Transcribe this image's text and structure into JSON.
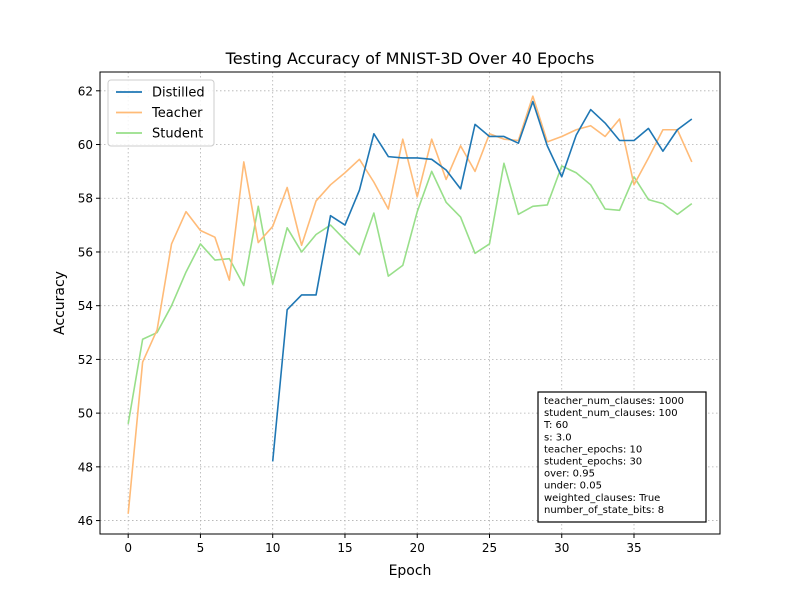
{
  "chart_data": {
    "type": "line",
    "title": "Testing Accuracy of MNIST-3D Over 40 Epochs",
    "xlabel": "Epoch",
    "ylabel": "Accuracy",
    "xlim": [
      -1.95,
      40.95
    ],
    "ylim": [
      45.5,
      62.7
    ],
    "xticks": [
      0,
      5,
      10,
      15,
      20,
      25,
      30,
      35
    ],
    "yticks": [
      46,
      48,
      50,
      52,
      54,
      56,
      58,
      60,
      62
    ],
    "grid": true,
    "legend_position": "top-left",
    "series": [
      {
        "name": "Distilled",
        "color": "#1f77b4",
        "x": [
          10,
          11,
          12,
          13,
          14,
          15,
          16,
          17,
          18,
          19,
          20,
          21,
          22,
          23,
          24,
          25,
          26,
          27,
          28,
          29,
          30,
          31,
          32,
          33,
          34,
          35,
          36,
          37,
          38,
          39
        ],
        "values": [
          48.2,
          53.85,
          54.4,
          54.4,
          57.35,
          57.0,
          58.3,
          60.4,
          59.55,
          59.5,
          59.5,
          59.45,
          59.05,
          58.35,
          60.75,
          60.3,
          60.3,
          60.05,
          61.6,
          59.95,
          58.8,
          60.35,
          61.3,
          60.8,
          60.15,
          60.15,
          60.6,
          59.75,
          60.55,
          60.95
        ]
      },
      {
        "name": "Teacher",
        "color": "#ffbb78",
        "x": [
          0,
          1,
          2,
          3,
          4,
          5,
          6,
          7,
          8,
          9,
          10,
          11,
          12,
          13,
          14,
          15,
          16,
          17,
          18,
          19,
          20,
          21,
          22,
          23,
          24,
          25,
          26,
          27,
          28,
          29,
          30,
          31,
          32,
          33,
          34,
          35,
          36,
          37,
          38,
          39
        ],
        "values": [
          46.25,
          51.9,
          53.1,
          56.3,
          57.5,
          56.8,
          56.55,
          54.95,
          59.35,
          56.35,
          56.95,
          58.4,
          56.25,
          57.9,
          58.5,
          58.95,
          59.45,
          58.6,
          57.6,
          60.2,
          58.05,
          60.2,
          58.7,
          59.95,
          59.0,
          60.4,
          60.2,
          60.15,
          61.8,
          60.1,
          60.3,
          60.55,
          60.7,
          60.3,
          60.95,
          58.5,
          59.5,
          60.55,
          60.55,
          59.35
        ]
      },
      {
        "name": "Student",
        "color": "#98df8a",
        "x": [
          0,
          1,
          2,
          3,
          4,
          5,
          6,
          7,
          8,
          9,
          10,
          11,
          12,
          13,
          14,
          15,
          16,
          17,
          18,
          19,
          20,
          21,
          22,
          23,
          24,
          25,
          26,
          27,
          28,
          29,
          30,
          31,
          32,
          33,
          34,
          35,
          36,
          37,
          38,
          39
        ],
        "values": [
          49.6,
          52.75,
          53.0,
          54.0,
          55.25,
          56.3,
          55.7,
          55.75,
          54.75,
          57.7,
          54.8,
          56.9,
          56.0,
          56.65,
          57.0,
          56.45,
          55.9,
          57.45,
          55.1,
          55.5,
          57.5,
          59.0,
          57.85,
          57.3,
          55.95,
          56.3,
          59.3,
          57.4,
          57.7,
          57.75,
          59.2,
          58.95,
          58.5,
          57.6,
          57.55,
          58.8,
          57.95,
          57.8,
          57.4,
          57.8
        ]
      }
    ],
    "annotation_lines": [
      "teacher_num_clauses: 1000",
      "student_num_clauses: 100",
      "T: 60",
      "s: 3.0",
      "teacher_epochs: 10",
      "student_epochs: 30",
      "over: 0.95",
      "under: 0.05",
      "weighted_clauses: True",
      "number_of_state_bits: 8"
    ]
  }
}
